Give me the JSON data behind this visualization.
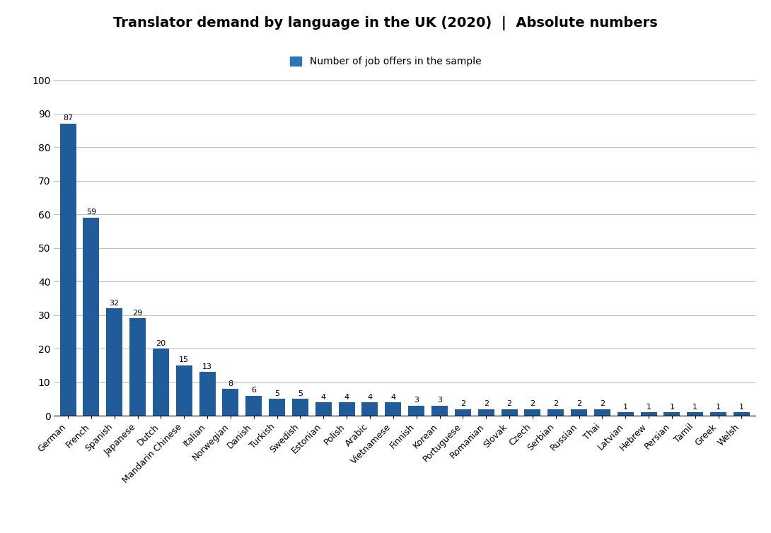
{
  "title": "Translator demand by language in the UK (2020)  |  Absolute numbers",
  "legend_label": "Number of job offers in the sample",
  "bar_color": "#1F5C99",
  "legend_color": "#2E75B6",
  "categories": [
    "German",
    "French",
    "Spanish",
    "Japanese",
    "Dutch",
    "Mandarin Chinese",
    "Italian",
    "Norwegian",
    "Danish",
    "Turkish",
    "Swedish",
    "Estonian",
    "Polish",
    "Arabic",
    "Vietnamese",
    "Finnish",
    "Korean",
    "Portuguese",
    "Romanian",
    "Slovak",
    "Czech",
    "Serbian",
    "Russian",
    "Thai",
    "Latvian",
    "Hebrew",
    "Persian",
    "Tamil",
    "Greek",
    "Welsh"
  ],
  "values": [
    87,
    59,
    32,
    29,
    20,
    15,
    13,
    8,
    6,
    5,
    5,
    4,
    4,
    4,
    4,
    3,
    3,
    2,
    2,
    2,
    2,
    2,
    2,
    2,
    1,
    1,
    1,
    1,
    1,
    1
  ],
  "ylim": [
    0,
    100
  ],
  "yticks": [
    0,
    10,
    20,
    30,
    40,
    50,
    60,
    70,
    80,
    90,
    100
  ],
  "background_color": "#FFFFFF",
  "grid_color": "#C0C0C0",
  "title_fontsize": 14,
  "legend_fontsize": 10,
  "tick_fontsize": 10,
  "bar_label_fontsize": 8,
  "xtick_fontsize": 9
}
